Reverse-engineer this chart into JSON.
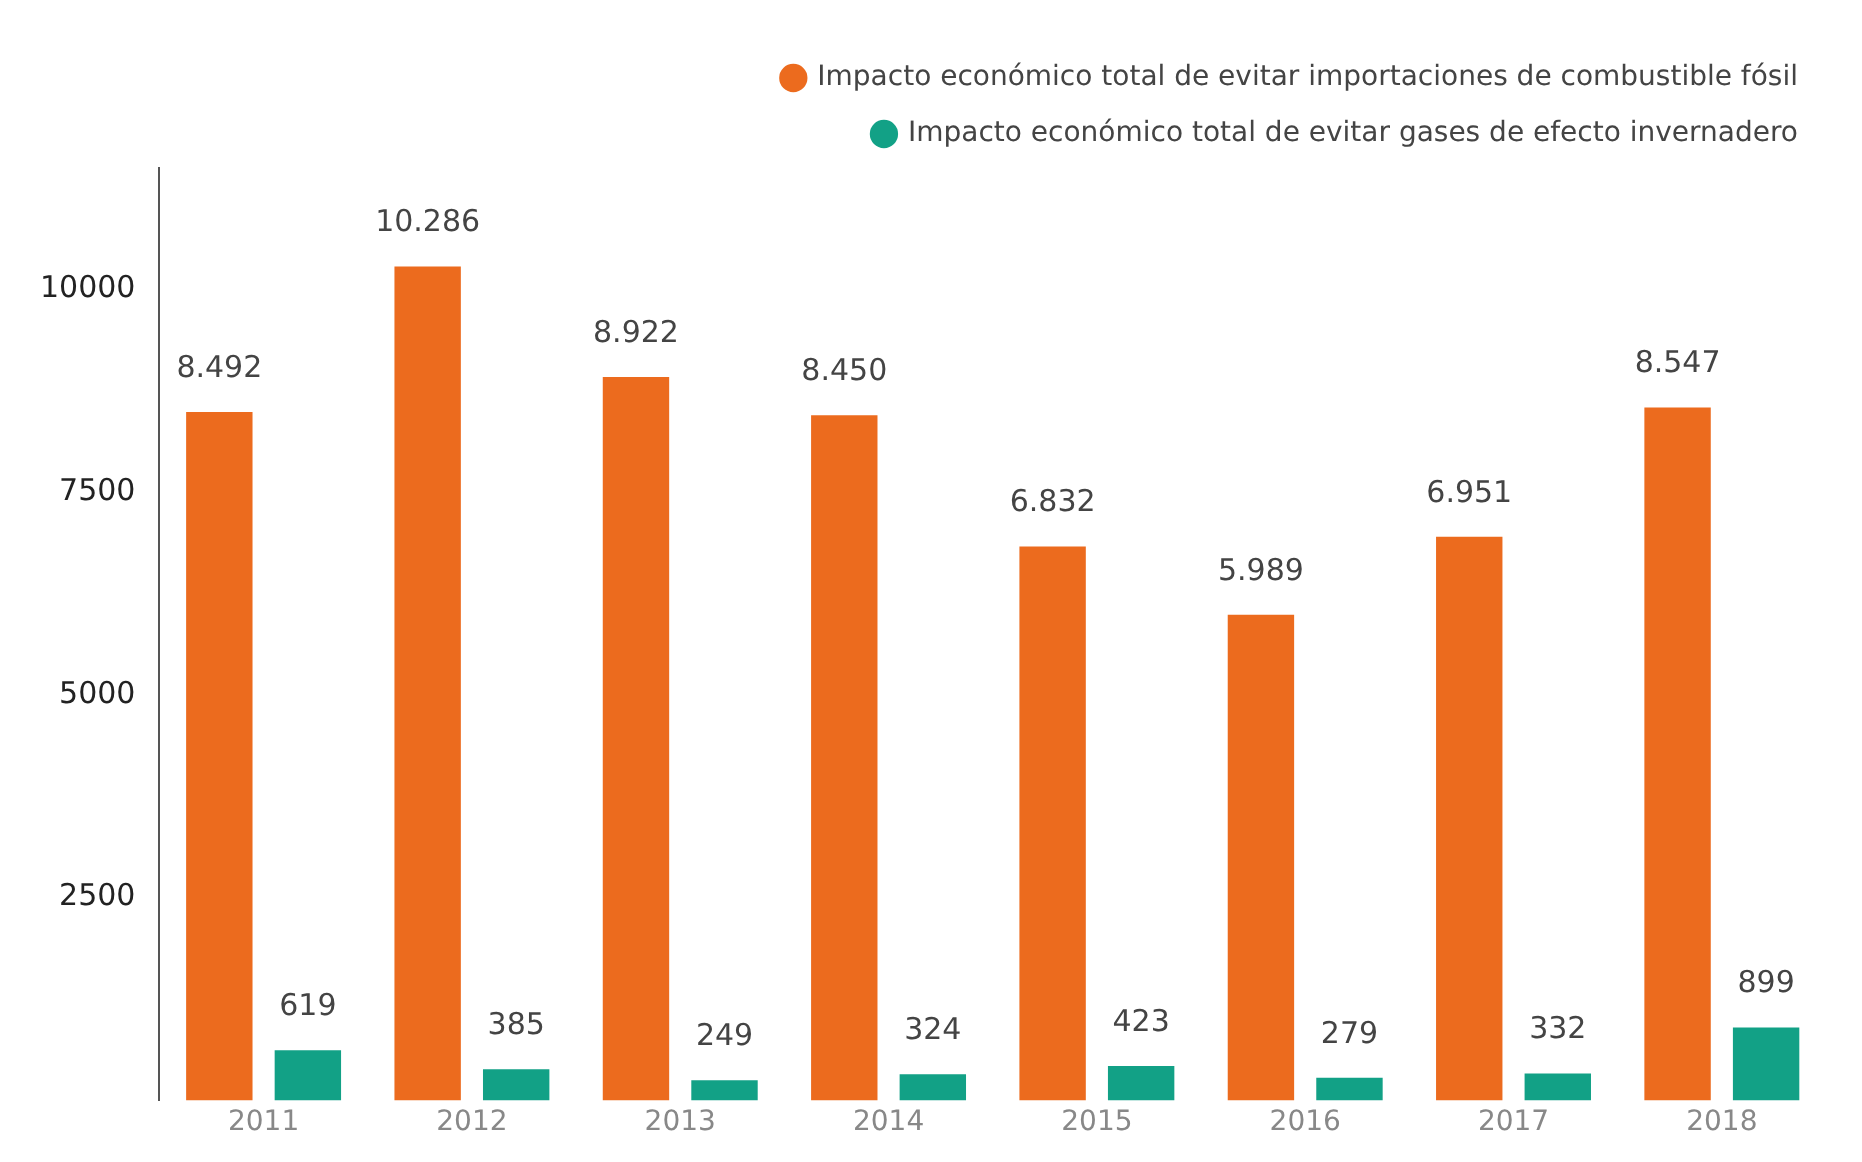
{
  "chart_data": {
    "type": "bar",
    "categories": [
      "2011",
      "2012",
      "2013",
      "2014",
      "2015",
      "2016",
      "2017",
      "2018"
    ],
    "series": [
      {
        "name": "Impacto económico total de evitar importaciones de combustible fósil",
        "color": "#ec6b1e",
        "values": [
          8492,
          10286,
          8922,
          8450,
          6832,
          5989,
          6951,
          8547
        ],
        "value_labels": [
          "8.492",
          "10.286",
          "8.922",
          "8.450",
          "6.832",
          "5.989",
          "6.951",
          "8.547"
        ]
      },
      {
        "name": "Impacto económico total de evitar gases de efecto invernadero",
        "color": "#12a186",
        "values": [
          619,
          385,
          249,
          324,
          423,
          279,
          332,
          899
        ],
        "value_labels": [
          "619",
          "385",
          "249",
          "324",
          "423",
          "279",
          "332",
          "899"
        ]
      }
    ],
    "ylim": [
      0,
      11500
    ],
    "yticks": [
      2500,
      5000,
      7500,
      10000
    ],
    "grid": false,
    "legend": "top right"
  }
}
